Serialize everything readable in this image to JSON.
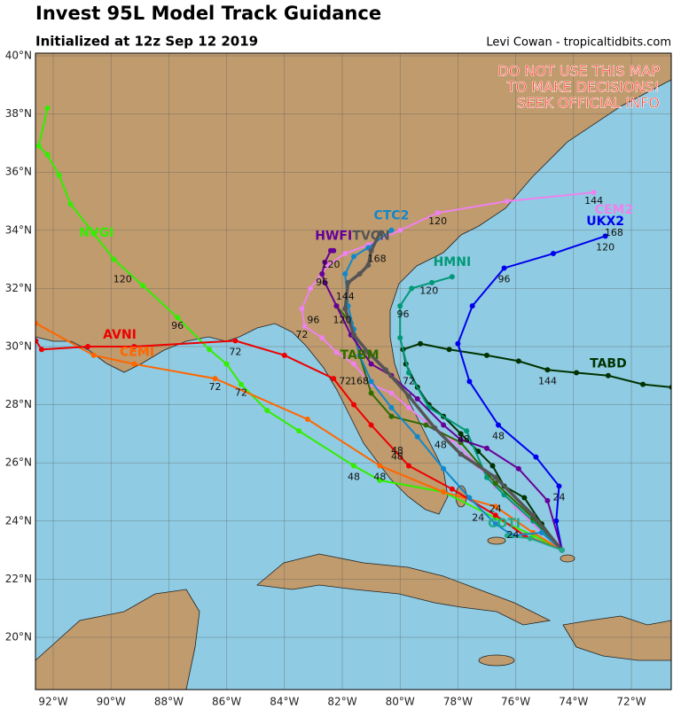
{
  "header": {
    "title": "Invest 95L Model Track Guidance",
    "subtitle": "Initialized at 12z Sep 12 2019",
    "credit": "Levi Cowan - tropicaltidbits.com"
  },
  "warning": [
    "DO NOT USE THIS MAP",
    "TO MAKE DECISIONS!",
    "SEEK OFFICIAL INFO"
  ],
  "lon_ticks": [
    {
      "value": -92,
      "label": "92°W"
    },
    {
      "value": -90,
      "label": "90°W"
    },
    {
      "value": -88,
      "label": "88°W"
    },
    {
      "value": -86,
      "label": "86°W"
    },
    {
      "value": -84,
      "label": "84°W"
    },
    {
      "value": -82,
      "label": "82°W"
    },
    {
      "value": -80,
      "label": "80°W"
    },
    {
      "value": -78,
      "label": "78°W"
    },
    {
      "value": -76,
      "label": "76°W"
    },
    {
      "value": -74,
      "label": "74°W"
    },
    {
      "value": -72,
      "label": "72°W"
    }
  ],
  "lat_ticks": [
    {
      "value": 40,
      "label": "40°N"
    },
    {
      "value": 38,
      "label": "38°N"
    },
    {
      "value": 36,
      "label": "36°N"
    },
    {
      "value": 34,
      "label": "34°N"
    },
    {
      "value": 32,
      "label": "32°N"
    },
    {
      "value": 30,
      "label": "30°N"
    },
    {
      "value": 28,
      "label": "28°N"
    },
    {
      "value": 26,
      "label": "26°N"
    },
    {
      "value": 24,
      "label": "24°N"
    },
    {
      "value": 22,
      "label": "22°N"
    },
    {
      "value": 20,
      "label": "20°N"
    }
  ],
  "tracks": [
    {
      "name": "TABD",
      "color": "#003300",
      "name_at": [
        -72.8,
        29.4
      ],
      "lon": [
        -74.4,
        -75.1,
        -75.7,
        -76.4,
        -76.8,
        -77.3,
        -77.9,
        -78.5,
        -79.0,
        -79.4,
        -79.8,
        -79.9,
        -79.3,
        -78.3,
        -77.0,
        -75.9,
        -74.9,
        -73.9,
        -72.8,
        -71.6,
        -70.6
      ],
      "lat": [
        23.0,
        23.9,
        24.8,
        25.2,
        25.9,
        26.4,
        27.0,
        27.6,
        28.0,
        28.6,
        29.4,
        29.9,
        30.1,
        29.9,
        29.7,
        29.5,
        29.2,
        29.1,
        29.0,
        28.7,
        28.6
      ],
      "labels": [
        {
          "text": "144",
          "at": [
            -74.9,
            28.8
          ]
        }
      ]
    },
    {
      "name": "NVGI",
      "color": "#33ee00",
      "name_at": [
        -90.5,
        33.9
      ],
      "lon": [
        -74.4,
        -75.4,
        -76.7,
        -78.5,
        -80.7,
        -81.6,
        -83.5,
        -84.6,
        -85.5,
        -86.0,
        -86.6,
        -87.7,
        -88.9,
        -89.9,
        -90.6,
        -91.4,
        -91.8,
        -92.2,
        -92.5,
        -92.2
      ],
      "lat": [
        23.0,
        23.5,
        24.1,
        25.0,
        25.4,
        25.9,
        27.1,
        27.8,
        28.7,
        29.4,
        29.9,
        31.0,
        32.1,
        33.0,
        33.9,
        34.9,
        35.9,
        36.6,
        36.9,
        38.2
      ],
      "labels": [
        {
          "text": "120",
          "at": [
            -89.6,
            32.3
          ]
        },
        {
          "text": "96",
          "at": [
            -87.7,
            30.7
          ]
        },
        {
          "text": "72",
          "at": [
            -85.5,
            28.4
          ]
        },
        {
          "text": "48",
          "at": [
            -81.6,
            25.5
          ]
        },
        {
          "text": "24",
          "at": [
            -77.3,
            24.1
          ]
        }
      ]
    },
    {
      "name": "CEMI",
      "color": "#ff6600",
      "name_at": [
        -89.1,
        29.8
      ],
      "lon": [
        -74.4,
        -75.4,
        -76.7,
        -78.5,
        -80.7,
        -83.2,
        -86.4,
        -89.2,
        -90.6,
        -92.6
      ],
      "lat": [
        23.0,
        23.6,
        24.5,
        25.0,
        25.9,
        27.5,
        28.9,
        29.4,
        29.7,
        30.8
      ],
      "labels": [
        {
          "text": "72",
          "at": [
            -86.4,
            28.6
          ]
        },
        {
          "text": "48",
          "at": [
            -80.7,
            25.5
          ]
        }
      ]
    },
    {
      "name": "AVNI",
      "color": "#ee0000",
      "name_at": [
        -89.7,
        30.4
      ],
      "lon": [
        -74.4,
        -75.7,
        -76.7,
        -78.2,
        -79.7,
        -81.0,
        -81.6,
        -82.3,
        -84.0,
        -85.7,
        -89.2,
        -90.8,
        -92.4,
        -92.6
      ],
      "lat": [
        23.0,
        23.5,
        24.2,
        25.1,
        25.9,
        27.3,
        28.0,
        28.9,
        29.7,
        30.2,
        30.0,
        30.0,
        29.9,
        30.2
      ],
      "labels": [
        {
          "text": "72",
          "at": [
            -85.7,
            29.8
          ]
        },
        {
          "text": "48",
          "at": [
            -80.1,
            26.2
          ]
        },
        {
          "text": "24",
          "at": [
            -76.7,
            24.4
          ]
        }
      ]
    },
    {
      "name": "UKX2",
      "color": "#0000ee",
      "name_at": [
        -72.9,
        34.3
      ],
      "lon": [
        -74.4,
        -74.6,
        -74.5,
        -75.3,
        -76.6,
        -77.6,
        -78.0,
        -77.5,
        -76.4,
        -74.7,
        -72.9
      ],
      "lat": [
        23.0,
        24.0,
        25.2,
        26.2,
        27.3,
        28.8,
        30.1,
        31.4,
        32.7,
        33.2,
        33.8
      ],
      "labels": [
        {
          "text": "24",
          "at": [
            -74.5,
            24.8
          ]
        },
        {
          "text": "48",
          "at": [
            -76.6,
            26.9
          ]
        },
        {
          "text": "96",
          "at": [
            -76.4,
            32.3
          ]
        },
        {
          "text": "120",
          "at": [
            -72.9,
            33.4
          ]
        },
        {
          "text": "168",
          "at": [
            -72.6,
            33.9
          ]
        }
      ]
    },
    {
      "name": "CEM2",
      "color": "#ee82ee",
      "name_at": [
        -72.6,
        34.7
      ],
      "lon": [
        -74.4,
        -75.1,
        -76.0,
        -76.7,
        -77.3,
        -78.2,
        -79.1,
        -79.7,
        -80.3,
        -81.0,
        -81.6,
        -82.2,
        -82.7,
        -83.3,
        -83.4,
        -83.1,
        -82.5,
        -81.9,
        -81.1,
        -80.0,
        -78.7,
        -76.3,
        -73.3
      ],
      "lat": [
        23.0,
        23.6,
        24.5,
        25.2,
        25.9,
        26.8,
        27.4,
        27.9,
        28.4,
        28.7,
        29.4,
        29.8,
        30.3,
        30.7,
        31.3,
        32.0,
        32.8,
        33.2,
        33.5,
        34.0,
        34.6,
        35.0,
        35.3
      ],
      "labels": [
        {
          "text": "120",
          "at": [
            -78.7,
            34.3
          ]
        },
        {
          "text": "144",
          "at": [
            -73.3,
            35.0
          ]
        },
        {
          "text": "72",
          "at": [
            -83.4,
            30.4
          ]
        },
        {
          "text": "96",
          "at": [
            -83.0,
            30.9
          ]
        }
      ]
    },
    {
      "name": "HMNI",
      "color": "#009977",
      "name_at": [
        -78.2,
        32.9
      ],
      "lon": [
        -74.4,
        -75.4,
        -76.4,
        -77.0,
        -77.7,
        -79.0,
        -79.7,
        -80.0,
        -80.0,
        -79.6,
        -78.9,
        -78.2
      ],
      "lat": [
        23.0,
        24.0,
        24.9,
        25.5,
        27.1,
        27.9,
        29.1,
        30.3,
        31.4,
        32.0,
        32.2,
        32.4
      ],
      "labels": [
        {
          "text": "96",
          "at": [
            -79.9,
            31.1
          ]
        },
        {
          "text": "120",
          "at": [
            -79.0,
            31.9
          ]
        },
        {
          "text": "72",
          "at": [
            -79.7,
            28.8
          ]
        },
        {
          "text": "48",
          "at": [
            -77.8,
            26.8
          ]
        }
      ]
    },
    {
      "name": "TABM",
      "color": "#2e6b00",
      "name_at": [
        -81.4,
        29.7
      ],
      "lon": [
        -74.4,
        -75.4,
        -76.7,
        -77.9,
        -79.1,
        -80.3,
        -81.0,
        -81.4,
        -81.7,
        -82.2
      ],
      "lat": [
        23.0,
        24.1,
        25.3,
        26.7,
        27.3,
        27.6,
        28.4,
        29.7,
        30.8,
        31.4
      ],
      "labels": [
        {
          "text": "72",
          "at": [
            -81.9,
            28.8
          ]
        },
        {
          "text": "48",
          "at": [
            -80.1,
            26.4
          ]
        }
      ]
    },
    {
      "name": "CTC2",
      "color": "#1188cc",
      "name_at": [
        -80.3,
        34.5
      ],
      "lon": [
        -74.4,
        -75.1,
        -76.1,
        -76.7,
        -77.6,
        -78.5,
        -79.4,
        -80.3,
        -81.0,
        -81.4,
        -81.6,
        -81.8,
        -81.9,
        -81.6,
        -81.1,
        -80.3
      ],
      "lat": [
        23.0,
        23.6,
        23.5,
        23.9,
        24.8,
        25.8,
        26.9,
        27.9,
        28.8,
        29.7,
        30.6,
        31.4,
        32.5,
        33.1,
        33.4,
        34.0
      ],
      "labels": [
        {
          "text": "168",
          "at": [
            -81.4,
            28.8
          ]
        },
        {
          "text": "24",
          "at": [
            -76.1,
            23.5
          ]
        }
      ]
    },
    {
      "name": "HWFI",
      "color": "#660099",
      "name_at": [
        -82.3,
        33.8
      ],
      "lon": [
        -74.4,
        -74.9,
        -75.9,
        -77.0,
        -77.9,
        -78.5,
        -79.4,
        -80.3,
        -81.0,
        -81.7,
        -82.2,
        -82.6,
        -82.7,
        -82.6,
        -82.4,
        -82.3
      ],
      "lat": [
        23.0,
        24.7,
        25.8,
        26.5,
        26.8,
        27.3,
        28.2,
        29.0,
        29.4,
        30.4,
        31.4,
        32.2,
        32.5,
        32.9,
        33.3,
        33.3
      ],
      "labels": [
        {
          "text": "120",
          "at": [
            -82.4,
            32.8
          ]
        },
        {
          "text": "96",
          "at": [
            -82.7,
            32.2
          ]
        },
        {
          "text": "48",
          "at": [
            -78.6,
            26.6
          ]
        }
      ]
    },
    {
      "name": "TVCN",
      "color": "#555555",
      "name_at": [
        -81.0,
        33.8
      ],
      "lon": [
        -74.4,
        -75.4,
        -76.7,
        -77.9,
        -78.8,
        -79.7,
        -80.5,
        -81.1,
        -81.6,
        -81.9,
        -81.8,
        -81.4,
        -81.1,
        -81.0,
        -80.7
      ],
      "lat": [
        23.0,
        24.2,
        25.5,
        26.3,
        27.2,
        28.3,
        29.2,
        29.8,
        30.4,
        31.3,
        32.2,
        32.5,
        32.8,
        33.3,
        33.9
      ],
      "labels": [
        {
          "text": "168",
          "at": [
            -80.8,
            33.0
          ]
        },
        {
          "text": "144",
          "at": [
            -81.9,
            31.7
          ]
        },
        {
          "text": "120",
          "at": [
            -82.0,
            30.9
          ]
        }
      ]
    },
    {
      "name": "COTI",
      "color": "#22aa88",
      "name_at": [
        -76.4,
        23.9
      ],
      "lon": [
        -74.4,
        -75.5,
        -76.3
      ],
      "lat": [
        23.0,
        23.4,
        23.5
      ],
      "labels": []
    }
  ]
}
